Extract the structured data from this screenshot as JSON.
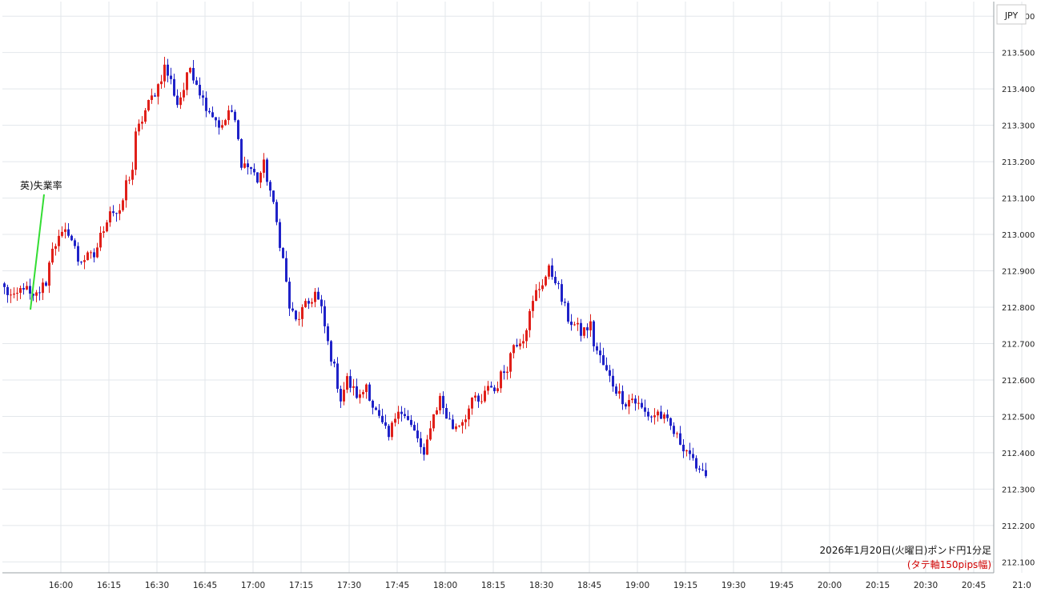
{
  "chart_data": {
    "type": "candlestick",
    "currency_label": "JPY",
    "caption": "2026年1月20日(火曜日)ポンド円1分足",
    "note": "(タテ軸150pips幅)",
    "annotation": "英)失業率",
    "ylim": [
      212.07,
      213.64
    ],
    "y_ticks": [
      "212.100",
      "212.200",
      "212.300",
      "212.400",
      "212.500",
      "212.600",
      "212.700",
      "212.800",
      "212.900",
      "213.000",
      "213.100",
      "213.200",
      "213.300",
      "213.400",
      "213.500",
      "213.600"
    ],
    "x_ticks": [
      "16:00",
      "16:15",
      "16:30",
      "16:45",
      "17:00",
      "17:15",
      "17:30",
      "17:45",
      "18:00",
      "18:15",
      "18:30",
      "18:45",
      "19:00",
      "19:15",
      "19:30",
      "19:45",
      "20:00",
      "20:15",
      "20:30",
      "20:45",
      "21:0"
    ],
    "x_start_time": "15:51",
    "bar_interval_min": 1,
    "up_color": "#e0201a",
    "down_color": "#1f22c8",
    "grid": true,
    "close_path": [
      [
        0,
        212.85
      ],
      [
        3,
        212.82
      ],
      [
        6,
        212.86
      ],
      [
        8,
        212.83
      ],
      [
        9,
        212.82
      ],
      [
        13,
        212.87
      ],
      [
        15,
        212.97
      ],
      [
        20,
        213.01
      ],
      [
        22,
        212.96
      ],
      [
        23,
        212.93
      ],
      [
        28,
        212.94
      ],
      [
        31,
        213.02
      ],
      [
        33,
        213.07
      ],
      [
        36,
        213.05
      ],
      [
        38,
        213.14
      ],
      [
        40,
        213.18
      ],
      [
        41,
        213.27
      ],
      [
        44,
        213.34
      ],
      [
        48,
        213.41
      ],
      [
        50,
        213.46
      ],
      [
        52,
        213.42
      ],
      [
        54,
        213.36
      ],
      [
        56,
        213.4
      ],
      [
        58,
        213.46
      ],
      [
        60,
        213.42
      ],
      [
        62,
        213.37
      ],
      [
        65,
        213.33
      ],
      [
        68,
        213.29
      ],
      [
        70,
        213.34
      ],
      [
        72,
        213.31
      ],
      [
        74,
        213.2
      ],
      [
        77,
        213.18
      ],
      [
        79,
        213.15
      ],
      [
        81,
        213.19
      ],
      [
        83,
        213.12
      ],
      [
        85,
        213.03
      ],
      [
        87,
        212.93
      ],
      [
        89,
        212.8
      ],
      [
        91,
        212.76
      ],
      [
        93,
        212.79
      ],
      [
        95,
        212.81
      ],
      [
        97,
        212.84
      ],
      [
        99,
        212.79
      ],
      [
        101,
        212.7
      ],
      [
        103,
        212.63
      ],
      [
        105,
        212.55
      ],
      [
        107,
        212.6
      ],
      [
        109,
        212.57
      ],
      [
        111,
        212.55
      ],
      [
        113,
        212.59
      ],
      [
        115,
        212.53
      ],
      [
        117,
        212.49
      ],
      [
        120,
        212.44
      ],
      [
        123,
        212.53
      ],
      [
        125,
        212.5
      ],
      [
        127,
        212.47
      ],
      [
        129,
        212.44
      ],
      [
        131,
        212.38
      ],
      [
        133,
        212.48
      ],
      [
        136,
        212.55
      ],
      [
        138,
        212.5
      ],
      [
        140,
        212.47
      ],
      [
        143,
        212.49
      ],
      [
        145,
        212.52
      ],
      [
        147,
        212.55
      ],
      [
        149,
        212.53
      ],
      [
        151,
        212.59
      ],
      [
        153,
        212.57
      ],
      [
        155,
        212.61
      ],
      [
        157,
        212.64
      ],
      [
        159,
        212.7
      ],
      [
        162,
        212.72
      ],
      [
        164,
        212.78
      ],
      [
        166,
        212.84
      ],
      [
        168,
        212.87
      ],
      [
        170,
        212.9
      ],
      [
        172,
        212.88
      ],
      [
        174,
        212.82
      ],
      [
        176,
        212.77
      ],
      [
        178,
        212.75
      ],
      [
        180,
        212.73
      ],
      [
        183,
        212.75
      ],
      [
        184,
        212.7
      ],
      [
        186,
        212.66
      ],
      [
        188,
        212.62
      ],
      [
        190,
        212.59
      ],
      [
        192,
        212.56
      ],
      [
        194,
        212.54
      ],
      [
        196,
        212.55
      ],
      [
        198,
        212.53
      ],
      [
        200,
        212.51
      ],
      [
        202,
        212.5
      ],
      [
        204,
        212.51
      ],
      [
        206,
        212.49
      ],
      [
        208,
        212.47
      ],
      [
        210,
        212.44
      ],
      [
        212,
        212.42
      ],
      [
        214,
        212.4
      ],
      [
        216,
        212.34
      ],
      [
        217,
        212.37
      ],
      [
        219,
        212.34
      ]
    ]
  }
}
